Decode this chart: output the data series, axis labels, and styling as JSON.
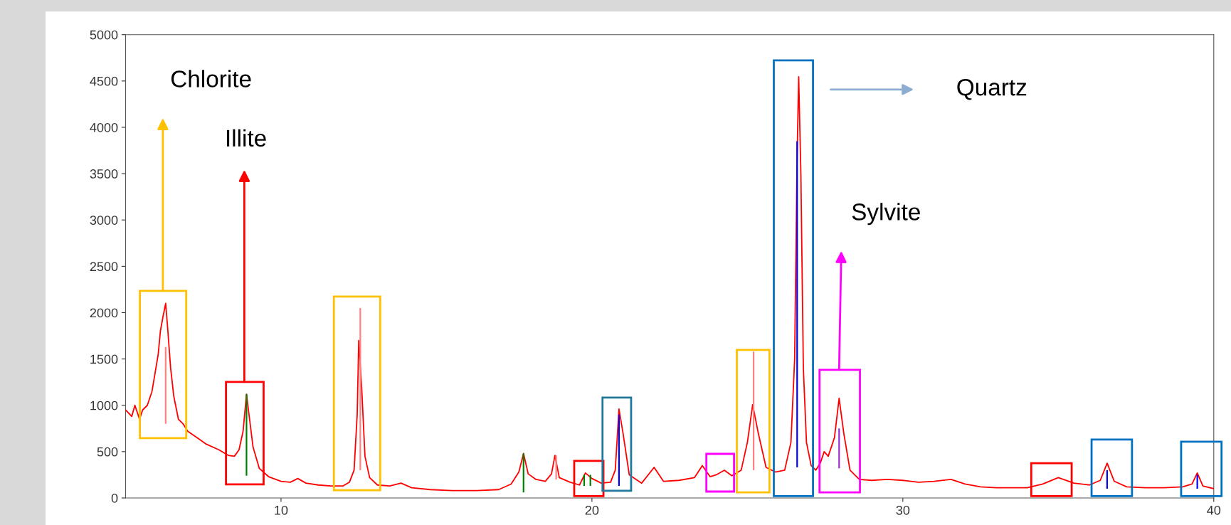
{
  "chart_data": {
    "type": "line",
    "xlim": [
      5,
      40
    ],
    "ylim": [
      0,
      5000
    ],
    "xticks": [
      10,
      20,
      30,
      40
    ],
    "yticks": [
      0,
      500,
      1000,
      1500,
      2000,
      2500,
      3000,
      3500,
      4000,
      4500,
      5000
    ],
    "grid": false,
    "series": [
      {
        "color": "#ff0000",
        "x": [
          5.0,
          5.2,
          5.3,
          5.45,
          5.55,
          5.7,
          5.85,
          5.95,
          6.05,
          6.12,
          6.2,
          6.29,
          6.35,
          6.45,
          6.55,
          6.7,
          6.85,
          7.0,
          7.3,
          7.6,
          8.0,
          8.3,
          8.5,
          8.65,
          8.78,
          8.89,
          8.97,
          9.1,
          9.3,
          9.6,
          10.0,
          10.3,
          10.54,
          10.8,
          11.2,
          11.6,
          12.0,
          12.2,
          12.35,
          12.45,
          12.5,
          12.6,
          12.7,
          12.85,
          13.1,
          13.5,
          13.86,
          14.2,
          14.8,
          15.5,
          16.3,
          17.0,
          17.4,
          17.65,
          17.8,
          17.95,
          18.2,
          18.5,
          18.7,
          18.81,
          18.95,
          19.3,
          19.6,
          19.79,
          20.0,
          20.3,
          20.6,
          20.75,
          20.87,
          21.0,
          21.2,
          21.6,
          22.0,
          22.3,
          22.8,
          23.3,
          23.55,
          23.8,
          24.0,
          24.26,
          24.5,
          24.8,
          25.0,
          25.17,
          25.35,
          25.6,
          25.9,
          26.2,
          26.4,
          26.52,
          26.6,
          26.65,
          26.72,
          26.8,
          26.9,
          27.05,
          27.2,
          27.35,
          27.47,
          27.6,
          27.8,
          27.95,
          28.1,
          28.3,
          28.6,
          29.0,
          29.5,
          30.0,
          30.5,
          31.0,
          31.55,
          32.0,
          32.5,
          33.0,
          33.5,
          34.0,
          34.5,
          35.0,
          35.5,
          36.0,
          36.35,
          36.57,
          36.8,
          37.2,
          37.8,
          38.4,
          39.0,
          39.3,
          39.47,
          39.65,
          40.0
        ],
        "values": [
          950,
          880,
          1000,
          850,
          950,
          1000,
          1150,
          1350,
          1550,
          1800,
          1950,
          2100,
          1850,
          1400,
          1100,
          850,
          800,
          720,
          650,
          580,
          520,
          460,
          450,
          520,
          720,
          1120,
          900,
          550,
          320,
          230,
          180,
          170,
          210,
          160,
          140,
          130,
          130,
          170,
          300,
          900,
          1700,
          1150,
          450,
          220,
          140,
          130,
          160,
          110,
          90,
          80,
          80,
          90,
          150,
          280,
          480,
          260,
          200,
          180,
          260,
          460,
          220,
          170,
          140,
          270,
          210,
          160,
          170,
          300,
          960,
          700,
          250,
          160,
          330,
          180,
          190,
          220,
          350,
          230,
          250,
          300,
          240,
          300,
          600,
          1006,
          700,
          330,
          280,
          300,
          600,
          1500,
          3700,
          4546,
          3500,
          1400,
          600,
          350,
          300,
          380,
          500,
          450,
          650,
          1075,
          700,
          300,
          200,
          190,
          200,
          190,
          170,
          180,
          200,
          150,
          120,
          110,
          110,
          110,
          150,
          220,
          160,
          140,
          190,
          375,
          180,
          120,
          110,
          110,
          120,
          150,
          270,
          130,
          100
        ]
      },
      {
        "type": "bar",
        "color": "#ff8080",
        "x": [
          6.29,
          12.55,
          18.85,
          25.2
        ],
        "base": [
          800,
          300,
          200,
          300
        ],
        "values": [
          830,
          1750,
          260,
          1280
        ]
      },
      {
        "type": "bar",
        "color": "#008000",
        "x": [
          8.89,
          17.8,
          19.75,
          19.95
        ],
        "base": [
          240,
          60,
          130,
          130
        ],
        "values": [
          880,
          420,
          120,
          120
        ]
      },
      {
        "type": "bar",
        "color": "#0000ff",
        "x": [
          20.87,
          26.6,
          36.57,
          39.47
        ],
        "base": [
          130,
          330,
          100,
          100
        ],
        "values": [
          770,
          3520,
          200,
          150
        ]
      },
      {
        "type": "bar",
        "color": "#9933cc",
        "x": [
          27.95
        ],
        "base": [
          320
        ],
        "values": [
          430
        ]
      }
    ],
    "annotations": [
      "Chlorite",
      "Illite",
      "Quartz",
      "Sylvite"
    ]
  }
}
